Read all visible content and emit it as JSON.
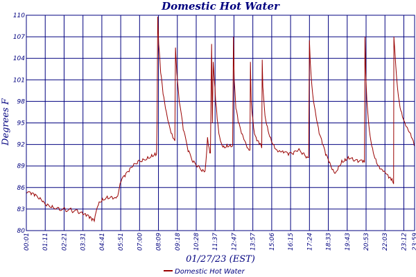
{
  "chart_data": {
    "type": "line",
    "title": "Domestic Hot Water",
    "xlabel": "01/27/23 (EST)",
    "ylabel": "Degrees F",
    "ylim": [
      80,
      110
    ],
    "yticks": [
      "80",
      "83",
      "86",
      "89",
      "92",
      "95",
      "98",
      "101",
      "104",
      "107",
      "110"
    ],
    "xticks": [
      "00:01",
      "01:11",
      "02:21",
      "03:31",
      "04:41",
      "05:51",
      "07:00",
      "08:09",
      "09:18",
      "10:28",
      "11:37",
      "12:47",
      "13:57",
      "15:06",
      "16:15",
      "17:24",
      "18:33",
      "19:43",
      "20:53",
      "22:03",
      "23:12",
      "23:59"
    ],
    "grid": true,
    "legend": "bottom-center",
    "colors": {
      "series": "#990000",
      "grid": "#00007f",
      "text": "#00007f"
    },
    "series": [
      {
        "name": "Domestic Hot Water",
        "x": [
          0.01,
          0.3,
          0.5,
          0.8,
          1.0,
          1.3,
          1.6,
          2.0,
          2.4,
          2.8,
          3.2,
          3.5,
          3.7,
          3.9,
          4.05,
          4.2,
          4.35,
          4.5,
          4.7,
          5.0,
          5.3,
          5.5,
          5.65,
          5.85,
          6.1,
          6.35,
          6.6,
          6.9,
          7.2,
          7.5,
          7.75,
          7.95,
          8.05,
          8.08,
          8.12,
          8.18,
          8.3,
          8.45,
          8.6,
          8.8,
          9.0,
          9.12,
          9.18,
          9.22,
          9.3,
          9.45,
          9.7,
          10.0,
          10.3,
          10.6,
          10.9,
          11.05,
          11.2,
          11.3,
          11.38,
          11.45,
          11.5,
          11.55,
          11.62,
          11.7,
          11.8,
          11.9,
          12.05,
          12.2,
          12.4,
          12.6,
          12.75,
          12.8,
          12.85,
          12.95,
          13.1,
          13.3,
          13.5,
          13.7,
          13.82,
          13.85,
          13.9,
          14.0,
          14.1,
          14.25,
          14.4,
          14.55,
          14.58,
          14.62,
          14.75,
          14.9,
          15.1,
          15.3,
          15.5,
          15.7,
          15.9,
          16.2,
          16.5,
          16.8,
          17.1,
          17.35,
          17.45,
          17.5,
          17.55,
          17.7,
          17.9,
          18.1,
          18.3,
          18.5,
          18.7,
          18.9,
          19.1,
          19.3,
          19.5,
          19.7,
          19.9,
          20.2,
          20.5,
          20.8,
          20.9,
          20.93,
          20.98,
          21.05,
          21.2,
          21.4,
          21.6,
          21.8,
          22.0,
          22.2,
          22.4,
          22.55,
          22.65,
          22.7,
          22.72,
          22.78,
          22.9,
          23.05,
          23.2,
          23.4,
          23.6,
          23.8,
          23.98
        ],
        "values": [
          85.2,
          85.0,
          84.8,
          84.4,
          84.0,
          83.7,
          83.5,
          83.2,
          83.0,
          82.8,
          82.5,
          82.2,
          82.0,
          81.7,
          81.4,
          81.3,
          83.0,
          84.0,
          84.5,
          84.8,
          84.7,
          84.6,
          84.8,
          86.8,
          87.5,
          88.2,
          89.0,
          89.7,
          90.0,
          90.3,
          90.6,
          90.8,
          90.7,
          95.0,
          109.8,
          106.0,
          102.0,
          99.0,
          97.0,
          95.0,
          93.5,
          92.8,
          92.5,
          105.5,
          102.0,
          98.0,
          94.0,
          91.0,
          89.5,
          89.0,
          88.5,
          88.3,
          93.0,
          91.5,
          90.8,
          106.0,
          95.0,
          103.5,
          101.0,
          98.0,
          95.5,
          93.5,
          92.2,
          91.8,
          92.0,
          92.0,
          91.8,
          107.0,
          101.0,
          97.0,
          95.0,
          93.5,
          92.5,
          91.5,
          91.2,
          103.5,
          98.0,
          95.5,
          93.5,
          92.5,
          92.0,
          91.5,
          103.8,
          100.0,
          96.0,
          94.5,
          93.0,
          92.0,
          91.2,
          91.0,
          90.8,
          90.5,
          90.6,
          91.2,
          90.8,
          90.3,
          90.2,
          106.5,
          103.5,
          99.0,
          96.0,
          93.5,
          92.0,
          90.5,
          89.5,
          88.5,
          88.0,
          89.0,
          89.8,
          90.0,
          90.3,
          89.8,
          89.5,
          89.5,
          89.5,
          107.0,
          102.0,
          98.0,
          94.0,
          91.5,
          90.0,
          89.0,
          88.5,
          88.0,
          87.3,
          87.0,
          86.8,
          86.5,
          107.0,
          105.0,
          101.0,
          98.0,
          96.5,
          95.0,
          94.0,
          93.0,
          91.8
        ]
      }
    ]
  }
}
